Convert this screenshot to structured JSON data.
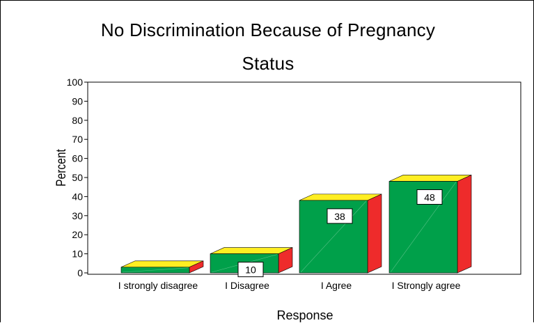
{
  "chart_data": {
    "type": "bar",
    "title_line1": "No Discrimination Because of Pregnancy",
    "title_line2": "Status",
    "xlabel": "Response",
    "ylabel": "Percent",
    "ylim": [
      0,
      100
    ],
    "yticks": [
      0,
      10,
      20,
      30,
      40,
      50,
      60,
      70,
      80,
      90,
      100
    ],
    "categories": [
      "I strongly disagree",
      "I Disagree",
      "I Agree",
      "I Strongly agree"
    ],
    "values": [
      3,
      10,
      38,
      48
    ],
    "data_labels": [
      "",
      "10",
      "38",
      "48"
    ],
    "colors": {
      "front": "#00a04a",
      "top": "#ffee22",
      "side": "#ee2b2b"
    },
    "grid": false,
    "legend": "none"
  }
}
